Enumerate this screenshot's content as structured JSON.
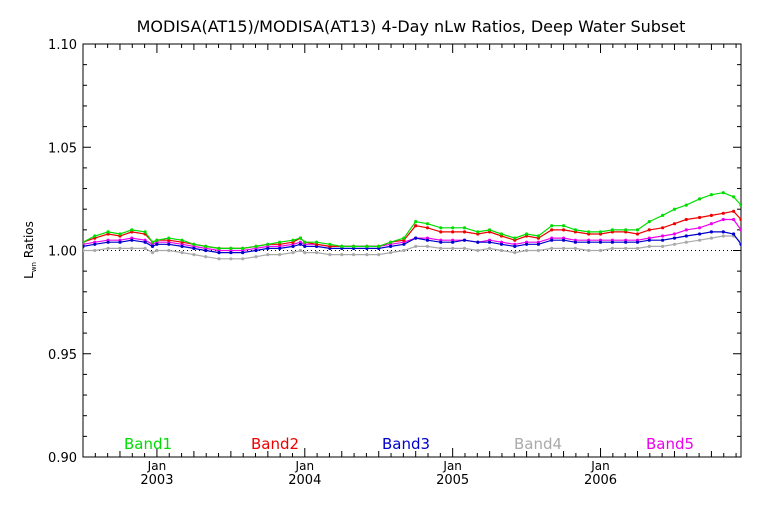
{
  "chart_data": {
    "type": "line",
    "title": "MODISA(AT15)/MODISA(AT13) 4-Day nLw Ratios, Deep Water Subset",
    "ylabel": "L",
    "ylabel_sub": "wn",
    "ylabel_suffix": " Ratios",
    "ylim": [
      0.9,
      1.1
    ],
    "y_ticks": [
      "0.90",
      "0.95",
      "1.00",
      "1.05",
      "1.10"
    ],
    "xlim": [
      2002.5,
      2006.95
    ],
    "x_ticks": [
      {
        "month": "Jan",
        "year": "2003"
      },
      {
        "month": "Jan",
        "year": "2004"
      },
      {
        "month": "Jan",
        "year": "2005"
      },
      {
        "month": "Jan",
        "year": "2006"
      }
    ],
    "reference_line": 1.0,
    "x": [
      2002.5,
      2002.58,
      2002.67,
      2002.75,
      2002.83,
      2002.92,
      2002.97,
      2003.0,
      2003.08,
      2003.17,
      2003.25,
      2003.33,
      2003.42,
      2003.5,
      2003.58,
      2003.67,
      2003.75,
      2003.83,
      2003.92,
      2003.97,
      2004.0,
      2004.08,
      2004.17,
      2004.25,
      2004.33,
      2004.42,
      2004.5,
      2004.58,
      2004.67,
      2004.75,
      2004.83,
      2004.92,
      2005.0,
      2005.08,
      2005.17,
      2005.25,
      2005.33,
      2005.42,
      2005.5,
      2005.58,
      2005.67,
      2005.75,
      2005.83,
      2005.92,
      2006.0,
      2006.08,
      2006.17,
      2006.25,
      2006.33,
      2006.42,
      2006.5,
      2006.58,
      2006.67,
      2006.75,
      2006.83,
      2006.9,
      2006.95
    ],
    "series": [
      {
        "name": "Band1",
        "color": "#00dd00",
        "values": [
          1.004,
          1.007,
          1.009,
          1.008,
          1.01,
          1.009,
          1.004,
          1.005,
          1.006,
          1.005,
          1.003,
          1.002,
          1.001,
          1.001,
          1.001,
          1.002,
          1.003,
          1.004,
          1.005,
          1.006,
          1.004,
          1.004,
          1.003,
          1.002,
          1.002,
          1.002,
          1.002,
          1.004,
          1.006,
          1.014,
          1.013,
          1.011,
          1.011,
          1.011,
          1.009,
          1.01,
          1.008,
          1.006,
          1.008,
          1.007,
          1.012,
          1.012,
          1.01,
          1.009,
          1.009,
          1.01,
          1.01,
          1.01,
          1.014,
          1.017,
          1.02,
          1.022,
          1.025,
          1.027,
          1.028,
          1.026,
          1.022
        ]
      },
      {
        "name": "Band2",
        "color": "#ee0000",
        "values": [
          1.004,
          1.006,
          1.008,
          1.007,
          1.009,
          1.008,
          1.004,
          1.005,
          1.005,
          1.004,
          1.003,
          1.002,
          1.001,
          1.001,
          1.001,
          1.002,
          1.003,
          1.003,
          1.004,
          1.006,
          1.004,
          1.003,
          1.002,
          1.002,
          1.002,
          1.002,
          1.002,
          1.004,
          1.005,
          1.012,
          1.011,
          1.009,
          1.009,
          1.009,
          1.008,
          1.009,
          1.007,
          1.005,
          1.007,
          1.006,
          1.01,
          1.01,
          1.009,
          1.008,
          1.008,
          1.009,
          1.009,
          1.008,
          1.01,
          1.011,
          1.013,
          1.015,
          1.016,
          1.017,
          1.018,
          1.019,
          1.015
        ]
      },
      {
        "name": "Band3",
        "color": "#0000cc",
        "values": [
          1.002,
          1.003,
          1.004,
          1.004,
          1.005,
          1.004,
          1.002,
          1.003,
          1.003,
          1.002,
          1.001,
          1.0,
          0.999,
          0.999,
          0.999,
          1.0,
          1.001,
          1.001,
          1.002,
          1.003,
          1.002,
          1.002,
          1.001,
          1.001,
          1.001,
          1.001,
          1.001,
          1.002,
          1.003,
          1.006,
          1.005,
          1.004,
          1.004,
          1.005,
          1.004,
          1.004,
          1.003,
          1.002,
          1.003,
          1.003,
          1.005,
          1.005,
          1.004,
          1.004,
          1.004,
          1.004,
          1.004,
          1.004,
          1.005,
          1.005,
          1.006,
          1.007,
          1.008,
          1.009,
          1.009,
          1.008,
          1.003
        ]
      },
      {
        "name": "Band4",
        "color": "#aaaaaa",
        "values": [
          1.0,
          1.0,
          1.001,
          1.001,
          1.001,
          1.001,
          0.999,
          1.0,
          1.0,
          0.999,
          0.998,
          0.997,
          0.996,
          0.996,
          0.996,
          0.997,
          0.998,
          0.998,
          0.999,
          1.0,
          0.999,
          0.999,
          0.998,
          0.998,
          0.998,
          0.998,
          0.998,
          0.999,
          1.0,
          1.002,
          1.002,
          1.001,
          1.001,
          1.001,
          1.0,
          1.001,
          1.0,
          0.999,
          1.0,
          1.0,
          1.001,
          1.001,
          1.001,
          1.0,
          1.0,
          1.001,
          1.001,
          1.001,
          1.002,
          1.002,
          1.003,
          1.004,
          1.005,
          1.006,
          1.007,
          1.007,
          1.004
        ]
      },
      {
        "name": "Band5",
        "color": "#ee00ee",
        "values": [
          1.003,
          1.004,
          1.005,
          1.005,
          1.006,
          1.005,
          1.003,
          1.004,
          1.004,
          1.003,
          1.002,
          1.001,
          1.0,
          1.0,
          1.0,
          1.001,
          1.002,
          1.002,
          1.003,
          1.004,
          1.003,
          1.003,
          1.002,
          1.002,
          1.002,
          1.002,
          1.002,
          1.003,
          1.004,
          1.006,
          1.006,
          1.005,
          1.005,
          1.005,
          1.004,
          1.005,
          1.004,
          1.003,
          1.004,
          1.004,
          1.006,
          1.006,
          1.005,
          1.005,
          1.005,
          1.005,
          1.005,
          1.005,
          1.006,
          1.007,
          1.008,
          1.01,
          1.011,
          1.013,
          1.015,
          1.015,
          1.01
        ]
      }
    ]
  }
}
